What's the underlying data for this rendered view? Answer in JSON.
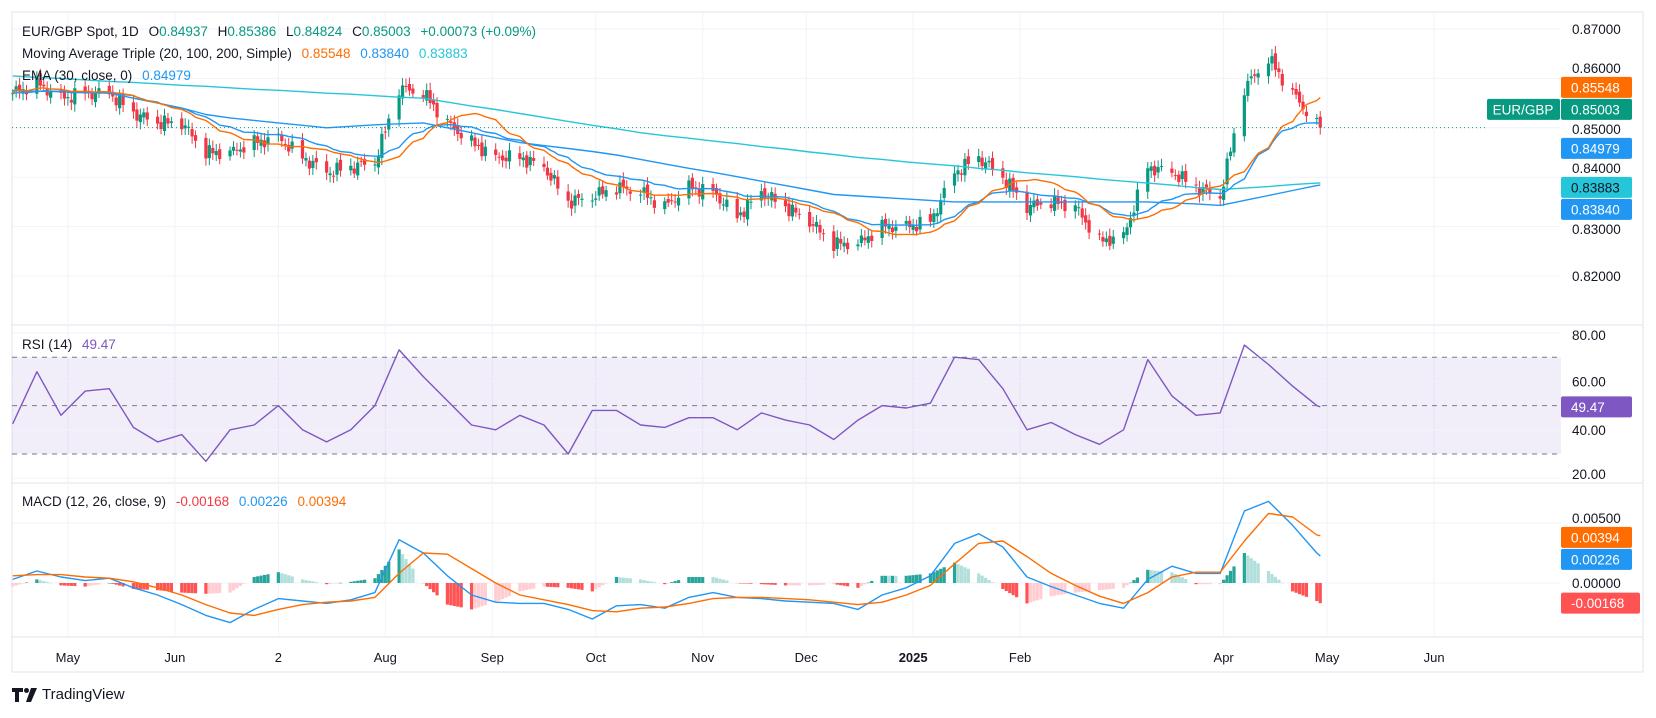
{
  "header": {
    "symbol": "EUR/GBP Spot, 1D",
    "open_label": "O",
    "open": "0.84937",
    "high_label": "H",
    "high": "0.85386",
    "low_label": "L",
    "low": "0.84824",
    "close_label": "C",
    "close": "0.85003",
    "change": "+0.00073 (+0.09%)"
  },
  "indicators": {
    "ma_triple": {
      "label": "Moving Average Triple (20, 100, 200, Simple)",
      "v20": "0.85548",
      "v100": "0.83840",
      "v200": "0.83883"
    },
    "ema": {
      "label": "EMA (30, close, 0)",
      "value": "0.84979"
    },
    "rsi": {
      "label": "RSI (14)",
      "value": "49.47"
    },
    "macd": {
      "label": "MACD (12, 26, close, 9)",
      "hist": "-0.00168",
      "macd": "0.00226",
      "signal": "0.00394"
    }
  },
  "price_axis": {
    "ticks": [
      "0.87000",
      "0.86000",
      "0.85000",
      "0.84000",
      "0.83000",
      "0.82000"
    ],
    "symbol_tag": "EUR/GBP"
  },
  "rsi_axis": {
    "ticks": [
      "80.00",
      "60.00",
      "40.00",
      "20.00"
    ]
  },
  "macd_axis": {
    "ticks": [
      "0.00500",
      "0.00000"
    ]
  },
  "time_axis": {
    "labels": [
      {
        "text": "May",
        "date": "2024-05-01"
      },
      {
        "text": "Jun",
        "date": "2024-06-01"
      },
      {
        "text": "2",
        "date": "2024-07-01"
      },
      {
        "text": "Aug",
        "date": "2024-08-01"
      },
      {
        "text": "Sep",
        "date": "2024-09-01"
      },
      {
        "text": "Oct",
        "date": "2024-10-01"
      },
      {
        "text": "Nov",
        "date": "2024-11-01"
      },
      {
        "text": "Dec",
        "date": "2024-12-01"
      },
      {
        "text": "2025",
        "date": "2025-01-01",
        "bold": true
      },
      {
        "text": "Feb",
        "date": "2025-02-01"
      },
      {
        "text": "Apr",
        "date": "2025-04-01"
      },
      {
        "text": "May",
        "date": "2025-05-01"
      },
      {
        "text": "Jun",
        "date": "2025-06-01"
      }
    ]
  },
  "colors": {
    "up": "#089981",
    "down": "#f23645",
    "sma20": "#ff6d00",
    "sma100": "#2196f3",
    "sma200": "#26c6da",
    "ema30": "#2196f3",
    "rsi": "#7e57c2",
    "macd": "#2196f3",
    "signal": "#ff6d00",
    "hist_up_strong": "#26a69a",
    "hist_up_weak": "#b2dfdb",
    "hist_dn_strong": "#ff5252",
    "hist_dn_weak": "#ffcdd2"
  },
  "branding": "TradingView",
  "chart_data": {
    "type": "candlestick",
    "title": "EUR/GBP Spot, 1D",
    "price_range": [
      0.816,
      0.874
    ],
    "rsi_range": [
      17,
      83
    ],
    "rsi_bands": [
      70,
      50,
      30
    ],
    "macd_range": [
      -0.0047,
      0.0085
    ],
    "grid": true,
    "dates": [
      "2024-04-15",
      "2024-04-22",
      "2024-04-29",
      "2024-05-06",
      "2024-05-13",
      "2024-05-20",
      "2024-05-27",
      "2024-06-03",
      "2024-06-10",
      "2024-06-17",
      "2024-06-24",
      "2024-07-01",
      "2024-07-08",
      "2024-07-15",
      "2024-07-22",
      "2024-07-29",
      "2024-08-05",
      "2024-08-12",
      "2024-08-19",
      "2024-08-26",
      "2024-09-02",
      "2024-09-09",
      "2024-09-16",
      "2024-09-23",
      "2024-09-30",
      "2024-10-07",
      "2024-10-14",
      "2024-10-21",
      "2024-10-28",
      "2024-11-04",
      "2024-11-11",
      "2024-11-18",
      "2024-11-25",
      "2024-12-02",
      "2024-12-09",
      "2024-12-16",
      "2024-12-23",
      "2024-12-30",
      "2025-01-06",
      "2025-01-13",
      "2025-01-20",
      "2025-01-27",
      "2025-02-03",
      "2025-02-10",
      "2025-02-17",
      "2025-02-24",
      "2025-03-03",
      "2025-03-10",
      "2025-03-17",
      "2025-03-24",
      "2025-03-31",
      "2025-04-07",
      "2025-04-14",
      "2025-04-21",
      "2025-04-28",
      "2025-04-29"
    ],
    "close": [
      0.857,
      0.859,
      0.856,
      0.857,
      0.857,
      0.853,
      0.851,
      0.851,
      0.845,
      0.845,
      0.847,
      0.848,
      0.844,
      0.841,
      0.842,
      0.843,
      0.858,
      0.857,
      0.851,
      0.847,
      0.844,
      0.844,
      0.842,
      0.835,
      0.836,
      0.838,
      0.837,
      0.834,
      0.838,
      0.837,
      0.832,
      0.837,
      0.834,
      0.831,
      0.8265,
      0.8265,
      0.83,
      0.83,
      0.831,
      0.841,
      0.844,
      0.84,
      0.834,
      0.835,
      0.834,
      0.827,
      0.828,
      0.842,
      0.841,
      0.838,
      0.836,
      0.858,
      0.864,
      0.857,
      0.8505,
      0.85003
    ],
    "sma100": [
      0.8575,
      0.8574,
      0.8573,
      0.8571,
      0.857,
      0.856,
      0.855,
      0.854,
      0.8527,
      0.852,
      0.8515,
      0.851,
      0.8505,
      0.85,
      0.8503,
      0.8506,
      0.8508,
      0.851,
      0.85,
      0.849,
      0.848,
      0.847,
      0.8464,
      0.8458,
      0.8452,
      0.8445,
      0.8436,
      0.8427,
      0.8418,
      0.841,
      0.8401,
      0.8392,
      0.8383,
      0.8374,
      0.8365,
      0.8362,
      0.8359,
      0.8356,
      0.8353,
      0.835,
      0.835,
      0.835,
      0.835,
      0.835,
      0.835,
      0.835,
      0.835,
      0.835,
      0.8348,
      0.8346,
      0.8343,
      0.8353,
      0.8363,
      0.8373,
      0.8383,
      0.8384
    ],
    "sma200": [
      0.8605,
      0.8602,
      0.86,
      0.8597,
      0.8594,
      0.8592,
      0.8589,
      0.8586,
      0.8584,
      0.8581,
      0.8578,
      0.8576,
      0.8573,
      0.857,
      0.8568,
      0.8565,
      0.8562,
      0.856,
      0.8552,
      0.8544,
      0.8537,
      0.8529,
      0.8521,
      0.8513,
      0.8505,
      0.8498,
      0.849,
      0.8484,
      0.8479,
      0.8473,
      0.8468,
      0.8462,
      0.8457,
      0.8451,
      0.8446,
      0.844,
      0.8436,
      0.8431,
      0.8427,
      0.8423,
      0.8418,
      0.8414,
      0.8409,
      0.8405,
      0.8401,
      0.8396,
      0.8392,
      0.8388,
      0.8384,
      0.8379,
      0.8375,
      0.8378,
      0.8381,
      0.8385,
      0.8388,
      0.83883
    ],
    "rsi": [
      42.5,
      64,
      46,
      56,
      57,
      41,
      35,
      38,
      27,
      40,
      42,
      50,
      40,
      35,
      40,
      50,
      73,
      62,
      52,
      42,
      40,
      46,
      42,
      30,
      48,
      48,
      42,
      41,
      45,
      45,
      40,
      47,
      44,
      42,
      36,
      44,
      50,
      49,
      51,
      70,
      69,
      57,
      40,
      43,
      38,
      34,
      40,
      69,
      54,
      46,
      47,
      75,
      67,
      58,
      50,
      49.47
    ],
    "macd": [
      0.0003,
      0.001,
      0.0005,
      0.0002,
      0.0004,
      -0.0004,
      -0.001,
      -0.0018,
      -0.0027,
      -0.0033,
      -0.0022,
      -0.0013,
      -0.0015,
      -0.0017,
      -0.0014,
      -0.0008,
      0.0036,
      0.0025,
      0.0006,
      -0.001,
      -0.0016,
      -0.0017,
      -0.0017,
      -0.0022,
      -0.003,
      -0.0019,
      -0.0018,
      -0.0021,
      -0.0012,
      -0.0008,
      -0.0012,
      -0.0013,
      -0.0015,
      -0.0016,
      -0.0017,
      -0.0022,
      -0.001,
      -0.0004,
      0.0006,
      0.0033,
      0.0041,
      0.003,
      0.0005,
      -0.0003,
      -0.001,
      -0.0017,
      -0.0021,
      0.0003,
      0.0014,
      0.0008,
      0.0008,
      0.006,
      0.0068,
      0.0048,
      0.0025,
      0.00226
    ],
    "signal": [
      0.0006,
      0.0007,
      0.0007,
      0.0005,
      0.0004,
      0.0001,
      -0.0004,
      -0.001,
      -0.0018,
      -0.0025,
      -0.0027,
      -0.0022,
      -0.0018,
      -0.0016,
      -0.0015,
      -0.0012,
      0.0008,
      0.0025,
      0.0024,
      0.0012,
      0.0,
      -0.001,
      -0.0014,
      -0.0018,
      -0.0023,
      -0.0024,
      -0.0021,
      -0.002,
      -0.0017,
      -0.0013,
      -0.0012,
      -0.0012,
      -0.0013,
      -0.0014,
      -0.0016,
      -0.0018,
      -0.0016,
      -0.001,
      -0.0002,
      0.0016,
      0.0033,
      0.0035,
      0.0022,
      0.0008,
      -0.0002,
      -0.0011,
      -0.0017,
      -0.0008,
      0.0005,
      0.0009,
      0.0009,
      0.0035,
      0.0058,
      0.0055,
      0.004,
      0.00394
    ],
    "last_values": {
      "close": 0.85003,
      "sma20": 0.85548,
      "ema30": 0.84979,
      "sma100": 0.8384,
      "sma200": 0.83883,
      "rsi": 49.47,
      "macd": 0.00226,
      "signal": 0.00394,
      "hist": -0.00168
    }
  }
}
